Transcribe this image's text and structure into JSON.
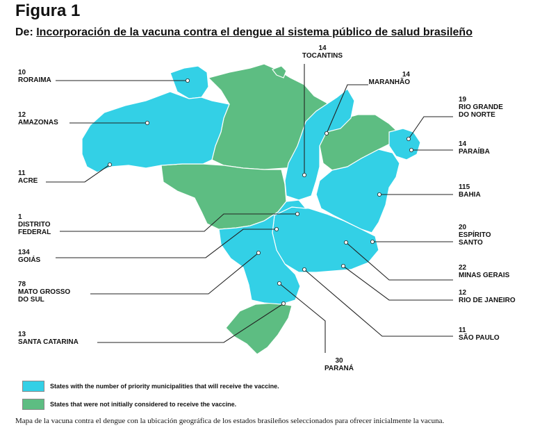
{
  "figure_label": "Figura 1",
  "subtitle_prefix": "De:",
  "subtitle_main": "Incorporación de la vacuna contra el dengue al sistema público de salud brasileño",
  "colors": {
    "selected": "#33d0e6",
    "not_selected": "#5dbd82",
    "border": "#ffffff"
  },
  "states": [
    {
      "count": "10",
      "name": [
        "RORAIMA"
      ]
    },
    {
      "count": "12",
      "name": [
        "AMAZONAS"
      ]
    },
    {
      "count": "11",
      "name": [
        "ACRE"
      ]
    },
    {
      "count": "1",
      "name": [
        "DISTRITO",
        "FEDERAL"
      ]
    },
    {
      "count": "134",
      "name": [
        "GOIÁS"
      ]
    },
    {
      "count": "78",
      "name": [
        "MATO GROSSO",
        "DO SUL"
      ]
    },
    {
      "count": "13",
      "name": [
        "SANTA CATARINA"
      ]
    },
    {
      "count": "14",
      "name": [
        "TOCANTINS"
      ]
    },
    {
      "count": "14",
      "name": [
        "MARANHÃO"
      ]
    },
    {
      "count": "19",
      "name": [
        "RIO GRANDE",
        "DO NORTE"
      ]
    },
    {
      "count": "14",
      "name": [
        "PARAÍBA"
      ]
    },
    {
      "count": "115",
      "name": [
        "BAHIA"
      ]
    },
    {
      "count": "20",
      "name": [
        "ESPÍRITO",
        "SANTO"
      ]
    },
    {
      "count": "22",
      "name": [
        "MINAS GERAIS"
      ]
    },
    {
      "count": "12",
      "name": [
        "RIO DE JANEIRO"
      ]
    },
    {
      "count": "11",
      "name": [
        "SÃO PAULO"
      ]
    },
    {
      "count": "30",
      "name": [
        "PARANÁ"
      ]
    }
  ],
  "legend": {
    "selected": "States with the number of priority municipalities that will receive the vaccine.",
    "not_selected": "States that were not initially considered to receive  the  vaccine."
  },
  "caption": "Mapa de la vacuna contra el dengue con la ubicación geográfica de los estados brasileños seleccionados para ofrecer inicialmente la vacuna."
}
